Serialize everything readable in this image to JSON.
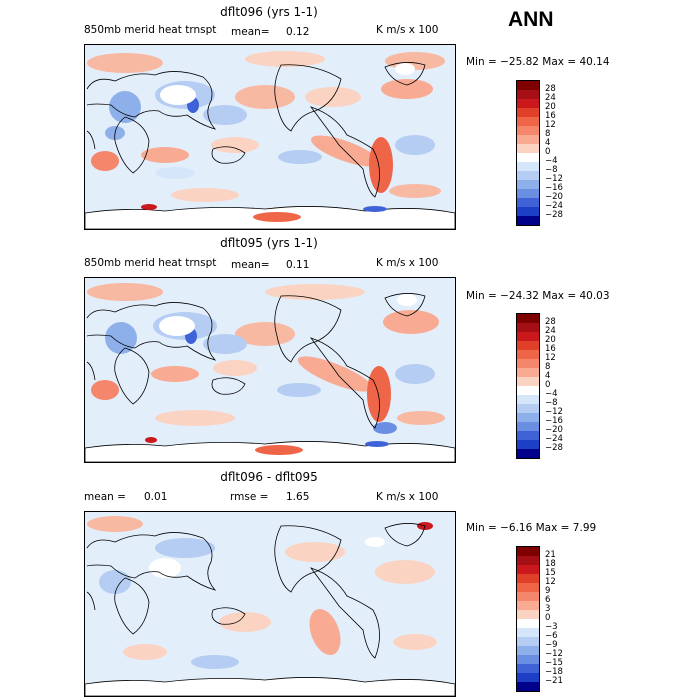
{
  "season": "ANN",
  "panels": [
    {
      "title": "dflt096 (yrs 1-1)",
      "left_label": "850mb merid heat trnspt",
      "mean_label": "mean=",
      "mean_value": "0.12",
      "units": "K m/s x 100",
      "minmax": "Min = −25.82 Max =  40.14",
      "colorbar": {
        "labels": [
          "28",
          "24",
          "20",
          "16",
          "12",
          "8",
          "4",
          "0",
          "−4",
          "−8",
          "−12",
          "−16",
          "−20",
          "−24",
          "−28"
        ],
        "colors": [
          "#7f0000",
          "#a50f15",
          "#cb181d",
          "#e0402a",
          "#ef6548",
          "#f4866b",
          "#f8ab92",
          "#fbd3c2",
          "#ffffff",
          "#d6e6fa",
          "#b5cdf2",
          "#8eb0ea",
          "#6a8fe2",
          "#3f63d6",
          "#1c3fc6",
          "#00008b"
        ]
      }
    },
    {
      "title": "dflt095 (yrs 1-1)",
      "left_label": "850mb merid heat trnspt",
      "mean_label": "mean=",
      "mean_value": "0.11",
      "units": "K m/s x 100",
      "minmax": "Min = −24.32 Max =  40.03",
      "colorbar": {
        "labels": [
          "28",
          "24",
          "20",
          "16",
          "12",
          "8",
          "4",
          "0",
          "−4",
          "−8",
          "−12",
          "−16",
          "−20",
          "−24",
          "−28"
        ],
        "colors": [
          "#7f0000",
          "#a50f15",
          "#cb181d",
          "#e0402a",
          "#ef6548",
          "#f4866b",
          "#f8ab92",
          "#fbd3c2",
          "#ffffff",
          "#d6e6fa",
          "#b5cdf2",
          "#8eb0ea",
          "#6a8fe2",
          "#3f63d6",
          "#1c3fc6",
          "#00008b"
        ]
      }
    },
    {
      "title": "dflt096 - dflt095",
      "left_label": "mean =",
      "mean_label": "",
      "mean_value": "0.01",
      "rmse_label": "rmse =",
      "rmse_value": "1.65",
      "units": "K m/s x 100",
      "minmax": "Min =  −6.16 Max =   7.99",
      "colorbar": {
        "labels": [
          "21",
          "18",
          "15",
          "12",
          "9",
          "6",
          "3",
          "0",
          "−3",
          "−6",
          "−9",
          "−12",
          "−15",
          "−18",
          "−21"
        ],
        "colors": [
          "#7f0000",
          "#a50f15",
          "#cb181d",
          "#e0402a",
          "#ef6548",
          "#f4866b",
          "#f8ab92",
          "#fbd3c2",
          "#ffffff",
          "#d6e6fa",
          "#b5cdf2",
          "#8eb0ea",
          "#6a8fe2",
          "#3f63d6",
          "#1c3fc6",
          "#00008b"
        ]
      }
    }
  ]
}
